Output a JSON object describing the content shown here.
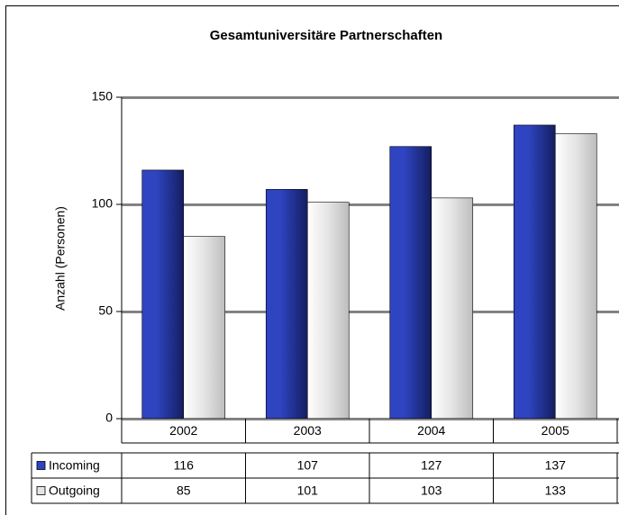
{
  "chart_data": {
    "type": "bar",
    "title": "Gesamtuniversitäre Partnerschaften",
    "y_label": "Anzahl (Personen)",
    "categories": [
      "2002",
      "2003",
      "2004",
      "2005"
    ],
    "series": [
      {
        "name": "Incoming",
        "color": "#2e44c0",
        "values": [
          116,
          107,
          127,
          137
        ]
      },
      {
        "name": "Outgoing",
        "color": "#e4e4e4",
        "values": [
          85,
          101,
          103,
          133
        ]
      }
    ],
    "ylim": [
      0,
      150
    ],
    "yticks": [
      0,
      50,
      100,
      150
    ],
    "grid": true
  }
}
